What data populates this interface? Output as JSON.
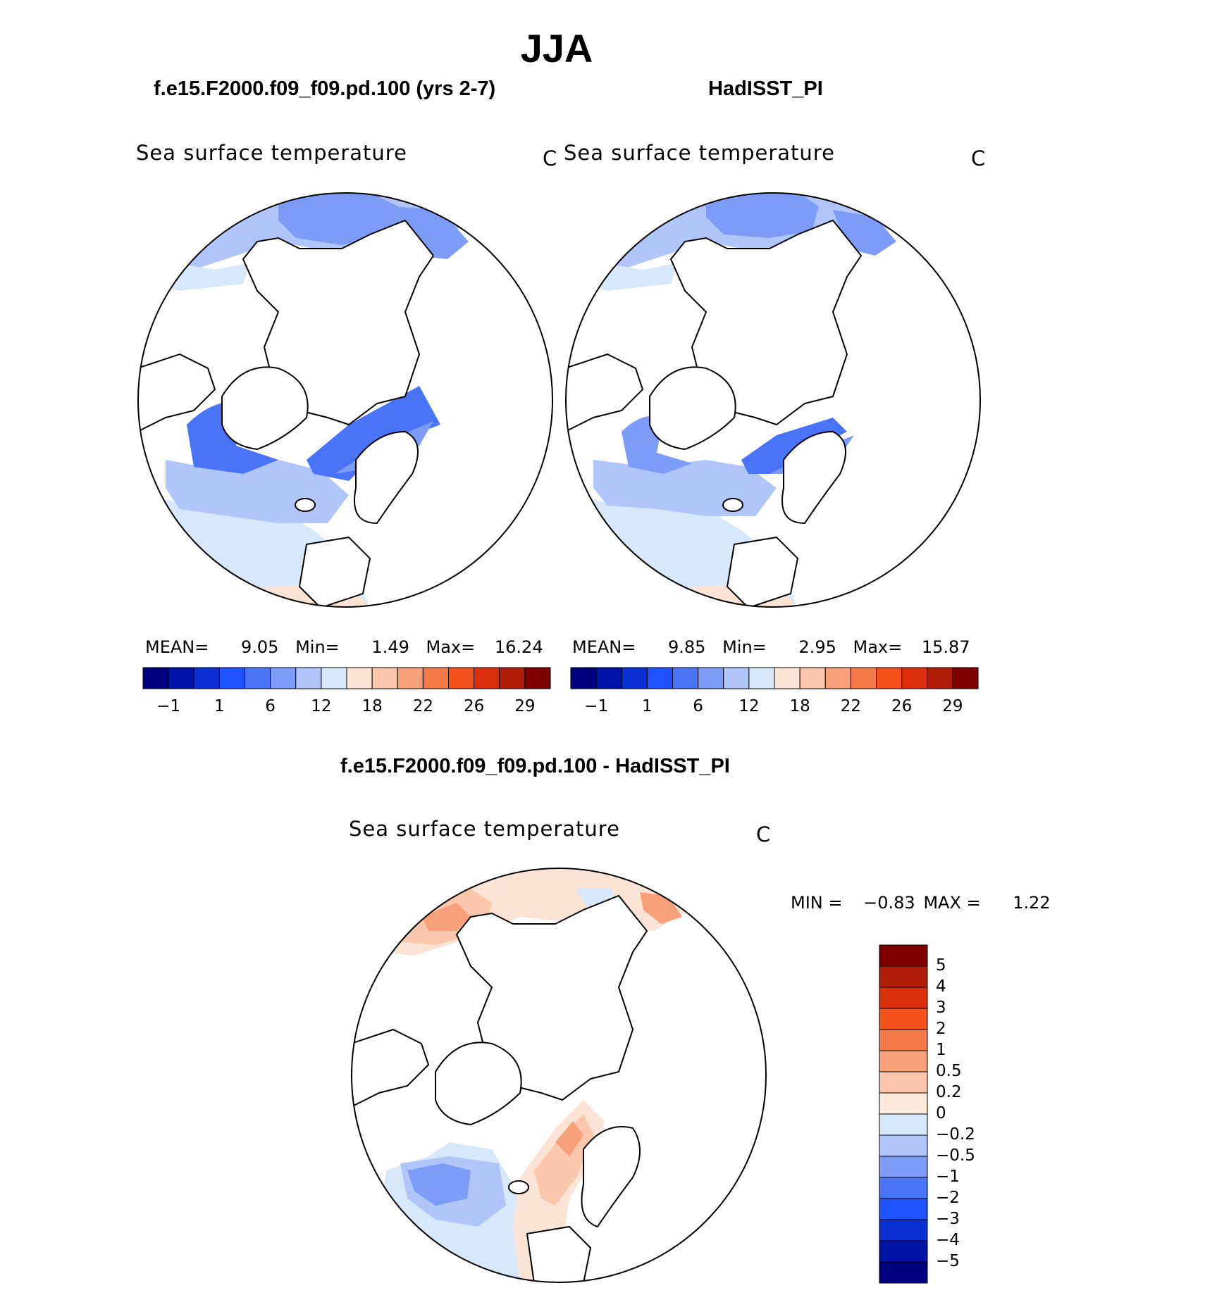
{
  "season_title": "JJA",
  "panels": [
    {
      "title": "f.e15.F2000.f09_f09.pd.100 (yrs 2-7)",
      "variable": "Sea surface temperature",
      "units": "C",
      "stats": {
        "mean_label": "MEAN=",
        "mean": "9.05",
        "min_label": "Min=",
        "min": "1.49",
        "max_label": "Max=",
        "max": "16.24"
      }
    },
    {
      "title": "HadISST_PI",
      "variable": "Sea surface temperature",
      "units": "C",
      "stats": {
        "mean_label": "MEAN=",
        "mean": "9.85",
        "min_label": "Min=",
        "min": "2.95",
        "max_label": "Max=",
        "max": "15.87"
      }
    }
  ],
  "abs_colorbar": {
    "colors": [
      "#00007f",
      "#0014a8",
      "#0a2fd4",
      "#1f52ff",
      "#4a74f7",
      "#7c9cf7",
      "#b0c6fa",
      "#d8e8fb",
      "#fbe4d6",
      "#fbc7ac",
      "#f7a07a",
      "#f47a4a",
      "#f5511c",
      "#db2e0b",
      "#b01e0a",
      "#7f0000"
    ],
    "tick_labels": [
      "−1",
      "1",
      "6",
      "12",
      "18",
      "22",
      "26",
      "29"
    ]
  },
  "diff_panel": {
    "title": "f.e15.F2000.f09_f09.pd.100 - HadISST_PI",
    "variable": "Sea surface temperature",
    "units": "C",
    "min_label": "MIN =",
    "min": "−0.83",
    "max_label": "MAX =",
    "max": "1.22"
  },
  "diff_colorbar": {
    "colors": [
      "#7f0000",
      "#b01e0a",
      "#db2e0b",
      "#f5511c",
      "#f47a4a",
      "#f7a07a",
      "#fbc7ac",
      "#fbe9dc",
      "#d8e8fb",
      "#b0c6fa",
      "#7c9cf7",
      "#4a74f7",
      "#1f52ff",
      "#0a2fd4",
      "#0014a8",
      "#00007f"
    ],
    "tick_labels": [
      "5",
      "4",
      "3",
      "2",
      "1",
      "0.5",
      "0.2",
      "0",
      "−0.2",
      "−0.5",
      "−1",
      "−2",
      "−3",
      "−4",
      "−5"
    ]
  },
  "colors": {
    "land": "#ffffff",
    "coastline": "#000000",
    "blue_light": "#d8e8fb",
    "blue_mid": "#b0c6fa",
    "blue_dark": "#7c9cf7",
    "blue_deep": "#4a74f7",
    "orange_light": "#fbe4d6",
    "orange_mid": "#fbc7ac",
    "orange_dark": "#f7a07a"
  }
}
